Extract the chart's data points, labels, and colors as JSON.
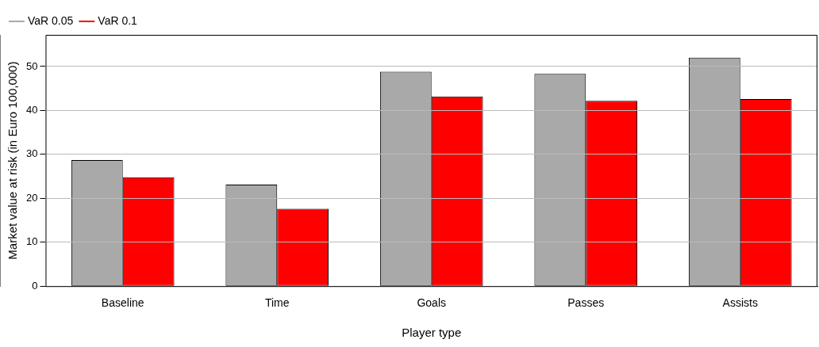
{
  "chart_data": {
    "type": "bar",
    "xlabel": "Player type",
    "ylabel": "Market value at risk (in Euro 100,000)",
    "categories": [
      "Baseline",
      "Time",
      "Goals",
      "Passes",
      "Assists"
    ],
    "series": [
      {
        "name": "VaR 0.05",
        "color": "#a9a9a9",
        "values": [
          28.7,
          23.1,
          48.8,
          48.3,
          52.0
        ]
      },
      {
        "name": "VaR 0.1",
        "color": "#ff0000",
        "values": [
          24.8,
          17.6,
          43.2,
          42.2,
          42.6
        ]
      }
    ],
    "ylim": [
      0,
      57.2
    ],
    "yticks": [
      0,
      10,
      20,
      30,
      40,
      50
    ],
    "grid": "y",
    "legend": "top left"
  }
}
